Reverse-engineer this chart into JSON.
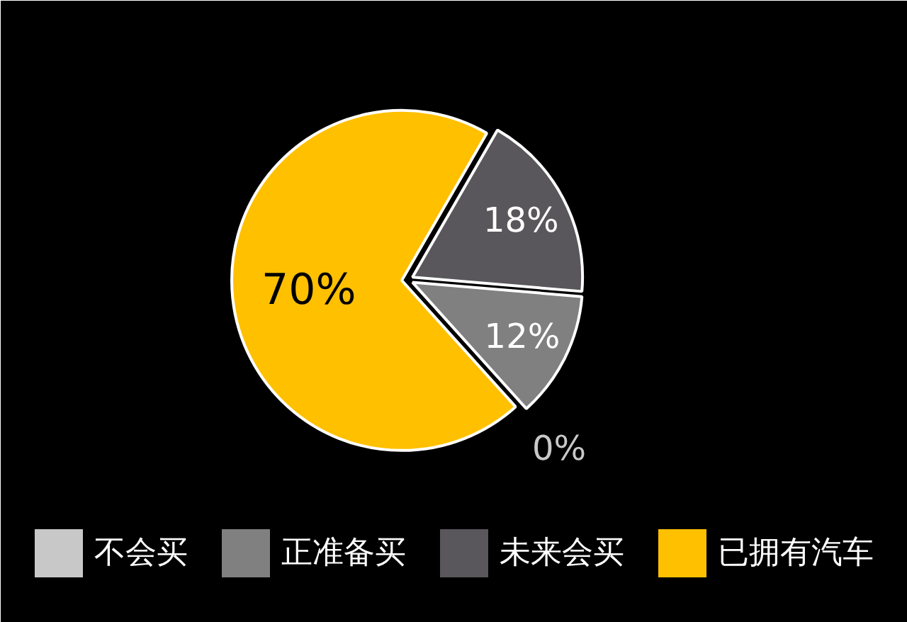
{
  "chart_data": {
    "type": "pie",
    "categories": [
      "不会买",
      "正准备买",
      "未来会买",
      "已拥有汽车"
    ],
    "values": [
      0,
      12,
      18,
      70
    ],
    "colors": [
      "#c8c8c8",
      "#808080",
      "#59575b",
      "#ffc000"
    ],
    "value_labels": [
      "0%",
      "12%",
      "18%",
      "70%"
    ],
    "legend": "bottom"
  }
}
